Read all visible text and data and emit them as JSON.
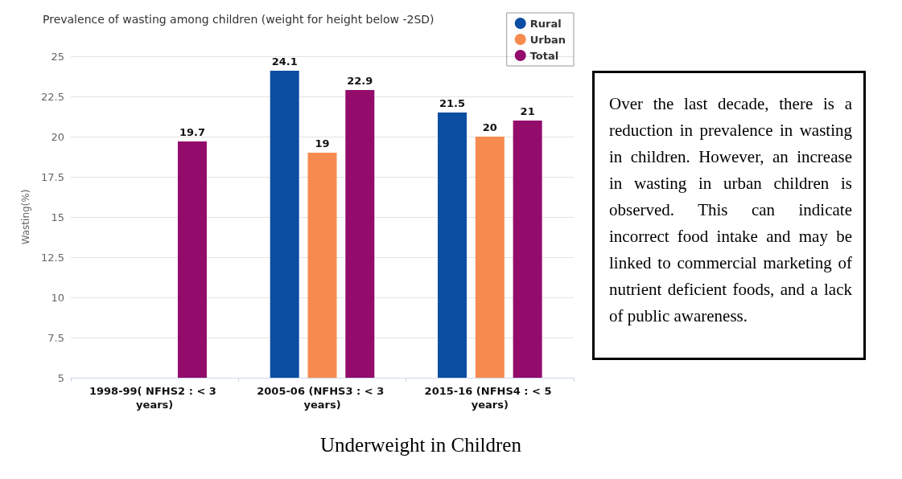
{
  "chart_data": {
    "type": "bar",
    "title": "Prevalence of wasting among children (weight for height below -2SD)",
    "ylabel": "Wasting(%)",
    "categories": [
      "1998-99( NFHS2 : < 3 years)",
      "2005-06 (NFHS3 : < 3 years)",
      "2015-16 (NFHS4 : < 5 years)"
    ],
    "series": [
      {
        "name": "Rural",
        "color": "#0b4ea2",
        "values": [
          null,
          24.1,
          21.5
        ]
      },
      {
        "name": "Urban",
        "color": "#f68b4f",
        "values": [
          null,
          19,
          20
        ]
      },
      {
        "name": "Total",
        "color": "#930b6b",
        "values": [
          19.7,
          22.9,
          21
        ]
      }
    ],
    "ylim": [
      5,
      25
    ],
    "yticks": [
      5,
      7.5,
      10,
      12.5,
      15,
      17.5,
      20,
      22.5,
      25
    ],
    "data_labels": true,
    "grid": "y",
    "legend": "top right",
    "annotations": [
      "Over the last decade, there is a reduction in prevalence in wasting in children. However, an increase in wasting in urban children is observed. This can indicate incorrect food intake and may be linked to commercial marketing of nutrient deficient foods, and a lack of public awareness.",
      "Underweight in Children"
    ]
  }
}
